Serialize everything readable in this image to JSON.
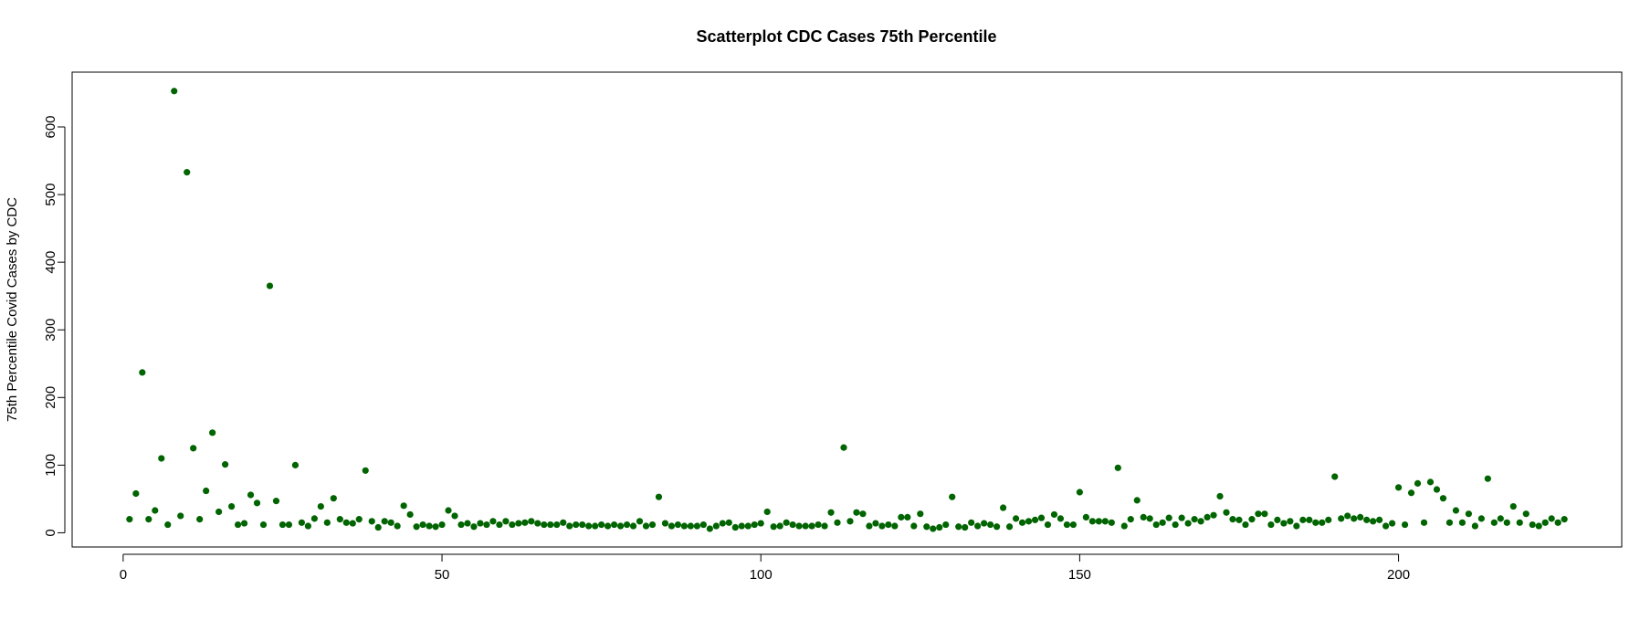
{
  "chart_data": {
    "type": "scatter",
    "title": "Scatterplot CDC Cases 75th Percentile",
    "y_label": "75th Percentile Covid Cases by CDC",
    "color": "#006400",
    "x": [
      1,
      2,
      3,
      4,
      5,
      6,
      7,
      8,
      9,
      10,
      11,
      12,
      13,
      14,
      15,
      16,
      17,
      18,
      19,
      20,
      21,
      22,
      23,
      24,
      25,
      26,
      27,
      28,
      29,
      30,
      31,
      32,
      33,
      34,
      35,
      36,
      37,
      38,
      39,
      40,
      41,
      42,
      43,
      44,
      45,
      46,
      47,
      48,
      49,
      50,
      51,
      52,
      53,
      54,
      55,
      56,
      57,
      58,
      59,
      60,
      61,
      62,
      63,
      64,
      65,
      66,
      67,
      68,
      69,
      70,
      71,
      72,
      73,
      74,
      75,
      76,
      77,
      78,
      79,
      80,
      81,
      82,
      83,
      84,
      85,
      86,
      87,
      88,
      89,
      90,
      91,
      92,
      93,
      94,
      95,
      96,
      97,
      98,
      99,
      100,
      101,
      102,
      103,
      104,
      105,
      106,
      107,
      108,
      109,
      110,
      111,
      112,
      113,
      114,
      115,
      116,
      117,
      118,
      119,
      120,
      121,
      122,
      123,
      124,
      125,
      126,
      127,
      128,
      129,
      130,
      131,
      132,
      133,
      134,
      135,
      136,
      137,
      138,
      139,
      140,
      141,
      142,
      143,
      144,
      145,
      146,
      147,
      148,
      149,
      150,
      151,
      152,
      153,
      154,
      155,
      156,
      157,
      158,
      159,
      160,
      161,
      162,
      163,
      164,
      165,
      166,
      167,
      168,
      169,
      170,
      171,
      172,
      173,
      174,
      175,
      176,
      177,
      178,
      179,
      180,
      181,
      182,
      183,
      184,
      185,
      186,
      187,
      188,
      189,
      190,
      191,
      192,
      193,
      194,
      195,
      196,
      197,
      198,
      199,
      200,
      201,
      202,
      203,
      204,
      205,
      206,
      207,
      208,
      209,
      210,
      211,
      212,
      213,
      214,
      215,
      216,
      217,
      218,
      219,
      220,
      221,
      222,
      223,
      224,
      225,
      226
    ],
    "values": [
      20,
      58,
      237,
      20,
      33,
      110,
      12,
      653,
      25,
      533,
      125,
      20,
      62,
      148,
      31,
      101,
      39,
      12,
      14,
      56,
      44,
      12,
      365,
      47,
      12,
      12,
      100,
      15,
      10,
      21,
      39,
      15,
      51,
      20,
      15,
      14,
      20,
      92,
      17,
      8,
      17,
      15,
      10,
      40,
      27,
      9,
      12,
      10,
      9,
      12,
      33,
      25,
      12,
      14,
      9,
      14,
      12,
      17,
      12,
      17,
      12,
      14,
      15,
      17,
      14,
      12,
      12,
      12,
      15,
      10,
      12,
      12,
      10,
      10,
      12,
      10,
      12,
      10,
      12,
      10,
      17,
      10,
      12,
      53,
      14,
      10,
      12,
      10,
      10,
      10,
      12,
      6,
      10,
      14,
      15,
      8,
      10,
      10,
      12,
      14,
      31,
      9,
      10,
      15,
      12,
      10,
      10,
      10,
      12,
      10,
      30,
      15,
      126,
      17,
      30,
      28,
      10,
      14,
      10,
      12,
      10,
      23,
      23,
      10,
      28,
      9,
      6,
      8,
      12,
      53,
      9,
      8,
      15,
      10,
      14,
      12,
      9,
      37,
      9,
      21,
      15,
      17,
      19,
      22,
      12,
      27,
      21,
      12,
      12,
      60,
      23,
      17,
      17,
      17,
      15,
      96,
      10,
      20,
      48,
      23,
      21,
      12,
      15,
      22,
      12,
      22,
      14,
      20,
      17,
      23,
      26,
      54,
      30,
      20,
      19,
      12,
      20,
      28,
      28,
      12,
      19,
      14,
      17,
      10,
      19,
      19,
      15,
      15,
      19,
      83,
      21,
      25,
      21,
      23,
      19,
      17,
      19,
      10,
      14,
      67,
      12,
      59,
      73,
      15,
      75,
      64,
      51,
      15,
      33,
      15,
      28,
      10,
      21,
      80,
      15,
      21,
      15,
      39,
      15,
      28,
      12,
      10,
      15,
      21,
      15,
      20
    ],
    "xlim": [
      -8,
      235
    ],
    "ylim": [
      -21,
      681
    ],
    "xticks": [
      0,
      50,
      100,
      150,
      200
    ],
    "yticks": [
      0,
      100,
      200,
      300,
      400,
      500,
      600
    ]
  }
}
